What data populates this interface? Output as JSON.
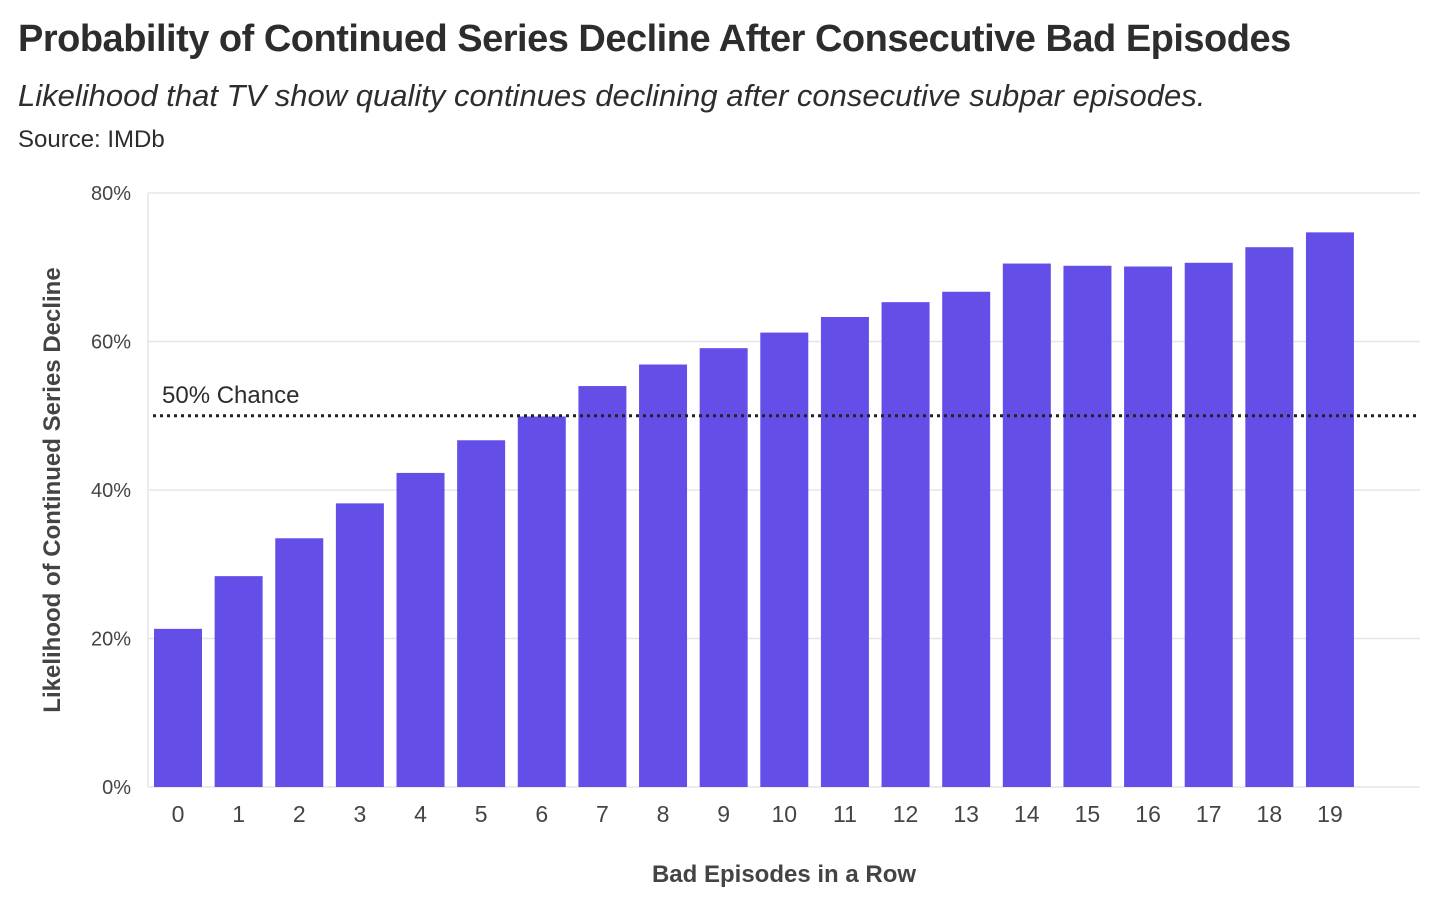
{
  "header": {
    "title": "Probability of Continued Series Decline After Consecutive Bad Episodes",
    "subtitle": "Likelihood that TV show quality continues declining after consecutive subpar episodes.",
    "source": "Source: IMDb"
  },
  "chart_data": {
    "type": "bar",
    "title": "Probability of Continued Series Decline After Consecutive Bad Episodes",
    "subtitle": "Likelihood that TV show quality continues declining after consecutive subpar episodes.",
    "xlabel": "Bad Episodes in a Row",
    "ylabel": "Likelihood of Continued Series Decline",
    "categories": [
      "0",
      "1",
      "2",
      "3",
      "4",
      "5",
      "6",
      "7",
      "8",
      "9",
      "10",
      "11",
      "12",
      "13",
      "14",
      "15",
      "16",
      "17",
      "18",
      "19"
    ],
    "values": [
      21.3,
      28.4,
      33.5,
      38.2,
      42.3,
      46.7,
      49.9,
      54.0,
      56.9,
      59.1,
      61.2,
      63.3,
      65.3,
      66.7,
      70.5,
      70.2,
      70.1,
      70.6,
      72.7,
      74.7
    ],
    "ylim": [
      0,
      80
    ],
    "yticks": [
      0,
      20,
      40,
      60,
      80
    ],
    "ytick_labels": [
      "0%",
      "20%",
      "40%",
      "60%",
      "80%"
    ],
    "reference_line": {
      "value": 50,
      "label": "50% Chance",
      "style": "dotted"
    },
    "bar_color": "#634fe8",
    "grid": true
  }
}
